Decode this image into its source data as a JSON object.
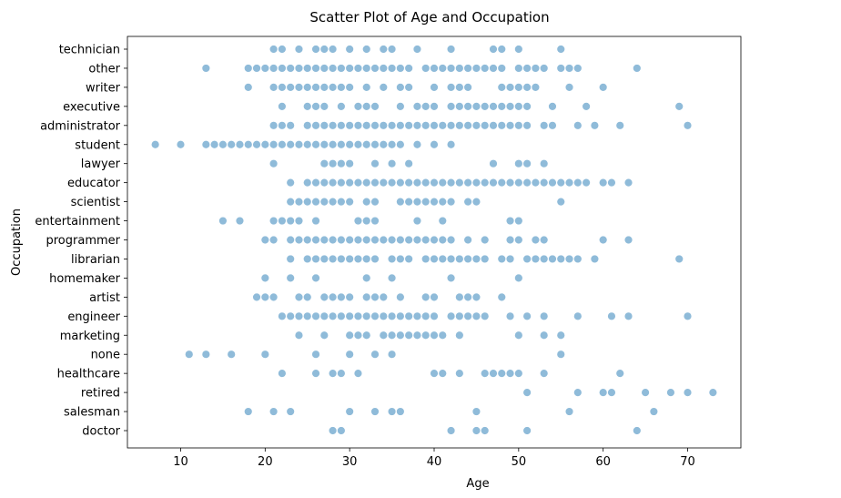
{
  "chart_data": {
    "type": "scatter",
    "title": "Scatter Plot of Age and Occupation",
    "xlabel": "Age",
    "ylabel": "Occupation",
    "xlim": [
      3.7,
      76.3
    ],
    "xticks": [
      10,
      20,
      30,
      40,
      50,
      60,
      70
    ],
    "categories": [
      "technician",
      "other",
      "writer",
      "executive",
      "administrator",
      "student",
      "lawyer",
      "educator",
      "scientist",
      "entertainment",
      "programmer",
      "librarian",
      "homemaker",
      "artist",
      "engineer",
      "marketing",
      "none",
      "healthcare",
      "retired",
      "salesman",
      "doctor"
    ],
    "grid": false,
    "legend": "none",
    "point_color": "#1f77b4",
    "points": {
      "technician": [
        21,
        22,
        24,
        26,
        27,
        28,
        30,
        32,
        34,
        35,
        38,
        42,
        47,
        48,
        50,
        55
      ],
      "other": [
        13,
        18,
        19,
        20,
        21,
        22,
        23,
        24,
        25,
        26,
        27,
        28,
        29,
        30,
        31,
        32,
        33,
        34,
        35,
        36,
        37,
        39,
        40,
        41,
        42,
        43,
        44,
        45,
        46,
        47,
        48,
        50,
        51,
        52,
        53,
        55,
        56,
        57,
        64
      ],
      "writer": [
        18,
        21,
        22,
        23,
        24,
        25,
        26,
        27,
        28,
        29,
        30,
        32,
        34,
        36,
        37,
        40,
        42,
        43,
        44,
        48,
        49,
        50,
        51,
        52,
        56,
        60
      ],
      "executive": [
        22,
        25,
        26,
        27,
        29,
        31,
        32,
        33,
        36,
        38,
        39,
        40,
        42,
        43,
        44,
        45,
        46,
        47,
        48,
        49,
        50,
        51,
        54,
        58,
        69
      ],
      "administrator": [
        21,
        22,
        23,
        25,
        26,
        27,
        28,
        29,
        30,
        31,
        32,
        33,
        34,
        35,
        36,
        37,
        38,
        39,
        40,
        41,
        42,
        43,
        44,
        45,
        46,
        47,
        48,
        49,
        50,
        51,
        53,
        54,
        57,
        59,
        62,
        70
      ],
      "student": [
        7,
        10,
        13,
        14,
        15,
        16,
        17,
        18,
        19,
        20,
        21,
        22,
        23,
        24,
        25,
        26,
        27,
        28,
        29,
        30,
        31,
        32,
        33,
        34,
        35,
        36,
        38,
        40,
        42
      ],
      "lawyer": [
        21,
        27,
        28,
        29,
        30,
        33,
        35,
        37,
        47,
        50,
        51,
        53
      ],
      "educator": [
        23,
        25,
        26,
        27,
        28,
        29,
        30,
        31,
        32,
        33,
        34,
        35,
        36,
        37,
        38,
        39,
        40,
        41,
        42,
        43,
        44,
        45,
        46,
        47,
        48,
        49,
        50,
        51,
        52,
        53,
        54,
        55,
        56,
        57,
        58,
        60,
        61,
        63
      ],
      "scientist": [
        23,
        24,
        25,
        26,
        27,
        28,
        29,
        30,
        32,
        33,
        36,
        37,
        38,
        39,
        40,
        41,
        42,
        44,
        45,
        55
      ],
      "entertainment": [
        15,
        17,
        21,
        22,
        23,
        24,
        26,
        31,
        32,
        33,
        38,
        41,
        49,
        50
      ],
      "programmer": [
        20,
        21,
        23,
        24,
        25,
        26,
        27,
        28,
        29,
        30,
        31,
        32,
        33,
        34,
        35,
        36,
        37,
        38,
        39,
        40,
        41,
        42,
        44,
        46,
        49,
        50,
        52,
        53,
        60,
        63
      ],
      "librarian": [
        23,
        25,
        26,
        27,
        28,
        29,
        30,
        31,
        32,
        33,
        35,
        36,
        37,
        39,
        40,
        41,
        42,
        43,
        44,
        45,
        46,
        48,
        49,
        51,
        52,
        53,
        54,
        55,
        56,
        57,
        59,
        69
      ],
      "homemaker": [
        20,
        23,
        26,
        32,
        35,
        42,
        50
      ],
      "artist": [
        19,
        20,
        21,
        24,
        25,
        27,
        28,
        29,
        30,
        32,
        33,
        34,
        36,
        39,
        40,
        43,
        44,
        45,
        48
      ],
      "engineer": [
        22,
        23,
        24,
        25,
        26,
        27,
        28,
        29,
        30,
        31,
        32,
        33,
        34,
        35,
        36,
        37,
        38,
        39,
        40,
        42,
        43,
        44,
        45,
        46,
        49,
        51,
        53,
        57,
        61,
        63,
        70
      ],
      "marketing": [
        24,
        27,
        30,
        31,
        32,
        34,
        35,
        36,
        37,
        38,
        39,
        40,
        41,
        43,
        50,
        53,
        55
      ],
      "none": [
        11,
        13,
        16,
        20,
        26,
        30,
        33,
        35,
        55
      ],
      "healthcare": [
        22,
        26,
        28,
        29,
        31,
        40,
        41,
        43,
        46,
        47,
        48,
        49,
        50,
        53,
        62
      ],
      "retired": [
        51,
        57,
        60,
        61,
        65,
        68,
        70,
        73
      ],
      "salesman": [
        18,
        21,
        23,
        30,
        33,
        35,
        36,
        45,
        56,
        66
      ],
      "doctor": [
        28,
        29,
        42,
        45,
        46,
        51,
        64
      ]
    }
  }
}
